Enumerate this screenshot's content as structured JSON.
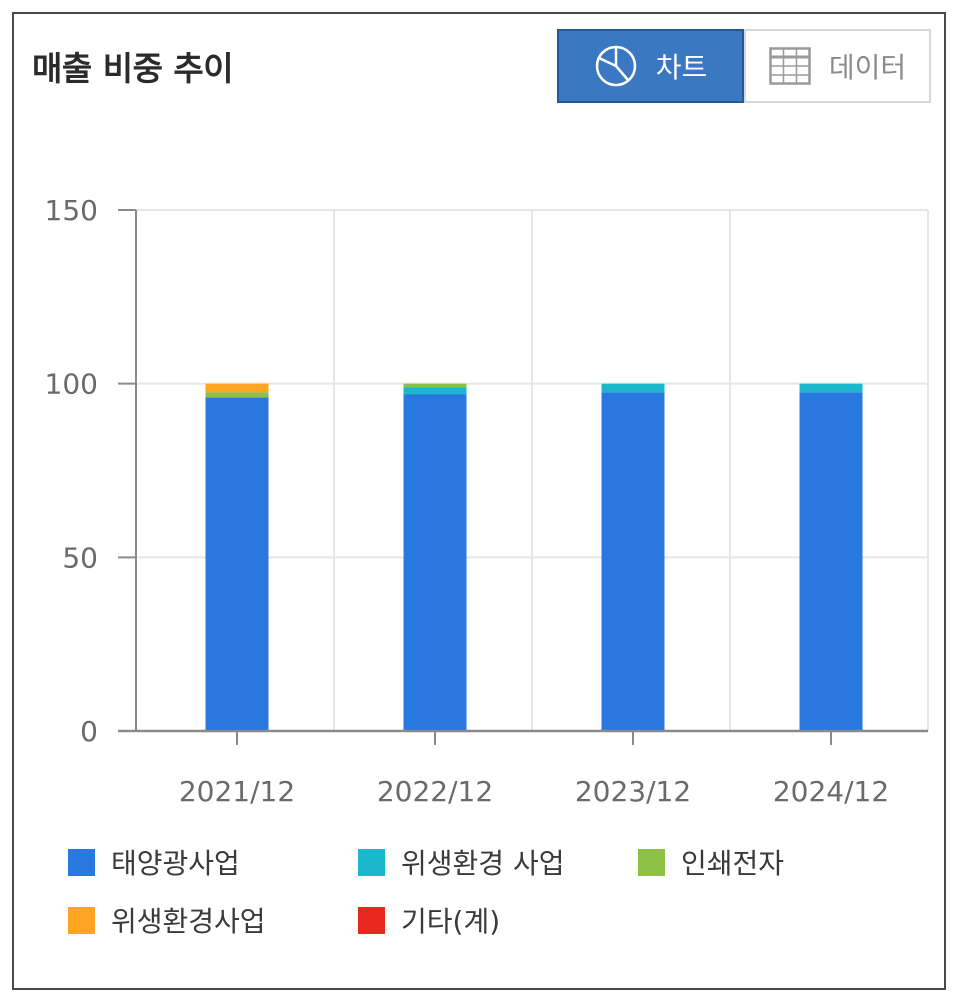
{
  "header": {
    "title": "매출 비중 추이"
  },
  "toggle": {
    "chart_label": "차트",
    "data_label": "데이터",
    "chart_icon": "pie-chart-icon",
    "data_icon": "table-grid-icon"
  },
  "colors": {
    "solar": "#2878e0",
    "hygiene_env_space": "#1ab8cc",
    "printed_electronics": "#8dc044",
    "hygiene_env": "#ffa521",
    "other": "#e8281e",
    "grid": "#e6e6e6",
    "axis": "#8a8a8a"
  },
  "chart_data": {
    "type": "bar",
    "stacked": true,
    "title": "매출 비중 추이",
    "categories": [
      "2021/12",
      "2022/12",
      "2023/12",
      "2024/12"
    ],
    "ylim": [
      0,
      150
    ],
    "yticks": [
      0,
      50,
      100,
      150
    ],
    "grid": true,
    "legend_position": "bottom",
    "series": [
      {
        "name": "태양광사업",
        "color_key": "solar",
        "values": [
          96.0,
          97.0,
          97.5,
          97.5
        ]
      },
      {
        "name": "위생환경 사업",
        "color_key": "hygiene_env_space",
        "values": [
          0,
          2.0,
          2.5,
          2.5
        ]
      },
      {
        "name": "인쇄전자",
        "color_key": "printed_electronics",
        "values": [
          1.5,
          1.0,
          0,
          0
        ]
      },
      {
        "name": "위생환경사업",
        "color_key": "hygiene_env",
        "values": [
          2.5,
          0,
          0,
          0
        ]
      },
      {
        "name": "기타(계)",
        "color_key": "other",
        "values": [
          0,
          0,
          0,
          0
        ]
      }
    ]
  }
}
